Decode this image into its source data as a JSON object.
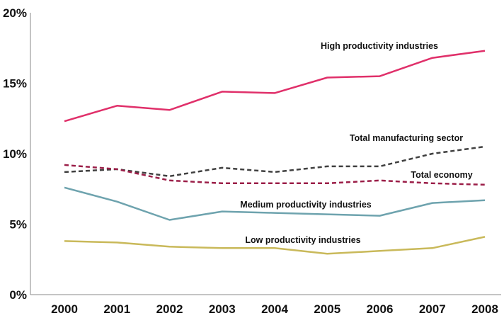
{
  "chart_data": {
    "type": "line",
    "title": "",
    "xlabel": "",
    "ylabel": "",
    "x": [
      "2000",
      "2001",
      "2002",
      "2003",
      "2004",
      "2005",
      "2006",
      "2007",
      "2008"
    ],
    "ylim": [
      0,
      20
    ],
    "yticks": [
      0,
      5,
      10,
      15,
      20
    ],
    "ytick_labels": [
      "0%",
      "5%",
      "10%",
      "15%",
      "20%"
    ],
    "grid": false,
    "legend": "none",
    "series": [
      {
        "name": "High productivity industries",
        "color": "#e0306a",
        "dash": "solid",
        "values": [
          12.3,
          13.4,
          13.1,
          14.4,
          14.3,
          15.4,
          15.5,
          16.8,
          17.3
        ]
      },
      {
        "name": "Total manufacturing sector",
        "color": "#404040",
        "dash": "dashed",
        "values": [
          8.7,
          8.9,
          8.4,
          9.0,
          8.7,
          9.1,
          9.1,
          10.0,
          10.5
        ]
      },
      {
        "name": "Total economy",
        "color": "#9b1e48",
        "dash": "dashed",
        "values": [
          9.2,
          8.9,
          8.1,
          7.9,
          7.9,
          7.9,
          8.1,
          7.9,
          7.8
        ]
      },
      {
        "name": "Medium productivity industries",
        "color": "#6ea3ae",
        "dash": "solid",
        "values": [
          7.6,
          6.6,
          5.3,
          5.9,
          5.8,
          5.7,
          5.6,
          6.5,
          6.7
        ]
      },
      {
        "name": "Low productivity industries",
        "color": "#c9b95a",
        "dash": "solid",
        "values": [
          3.8,
          3.7,
          3.4,
          3.3,
          3.3,
          2.9,
          3.1,
          3.3,
          4.1
        ]
      }
    ]
  }
}
